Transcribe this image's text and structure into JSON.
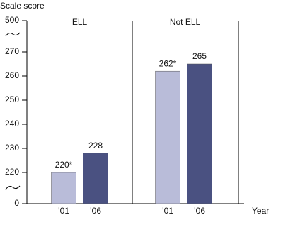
{
  "chart_data": {
    "type": "bar",
    "y_axis_label": "Scale score",
    "x_axis_label": "Year",
    "categories": [
      "’01",
      "’06"
    ],
    "colors": [
      "#b9bcd9",
      "#4a5181"
    ],
    "yticks": [
      0,
      220,
      230,
      240,
      250,
      260,
      270,
      500
    ],
    "ylim": [
      0,
      500
    ],
    "y_axis_break": true,
    "panels": [
      {
        "title": "ELL",
        "values": [
          220,
          228
        ],
        "value_labels": [
          "220*",
          "228"
        ]
      },
      {
        "title": "Not ELL",
        "values": [
          262,
          265
        ],
        "value_labels": [
          "262*",
          "265"
        ]
      }
    ]
  }
}
